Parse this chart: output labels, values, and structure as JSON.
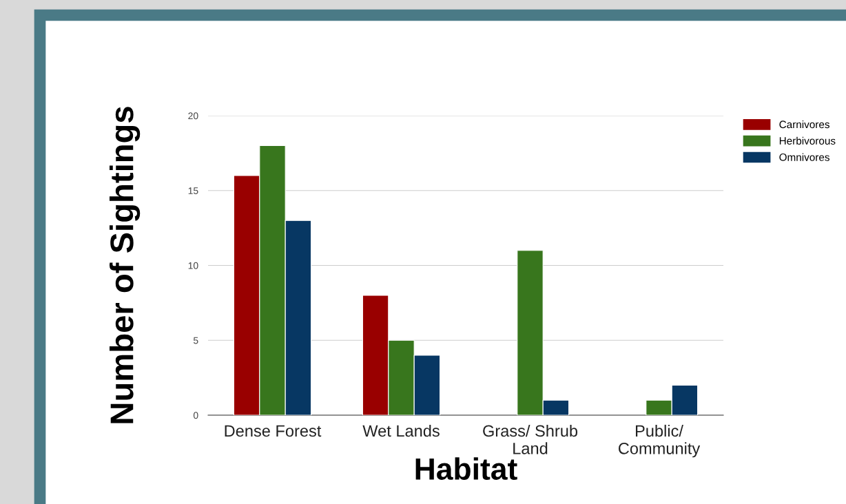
{
  "chart_data": {
    "type": "bar",
    "xlabel": "Habitat",
    "ylabel": "Number of Sightings",
    "categories": [
      "Dense Forest",
      "Wet Lands",
      "Grass/ Shrub\nLand",
      "Public/\nCommunity"
    ],
    "series": [
      {
        "name": "Carnivores",
        "color": "#990000",
        "values": [
          16,
          8,
          null,
          null
        ]
      },
      {
        "name": "Herbivorous",
        "color": "#38761d",
        "values": [
          18,
          5,
          11,
          1
        ]
      },
      {
        "name": "Omnivores",
        "color": "#073763",
        "values": [
          13,
          4,
          1,
          2
        ]
      }
    ],
    "ylim": [
      0,
      20
    ],
    "yticks": [
      0,
      5,
      10,
      15,
      20
    ],
    "grid": "y",
    "legend": "top right"
  }
}
